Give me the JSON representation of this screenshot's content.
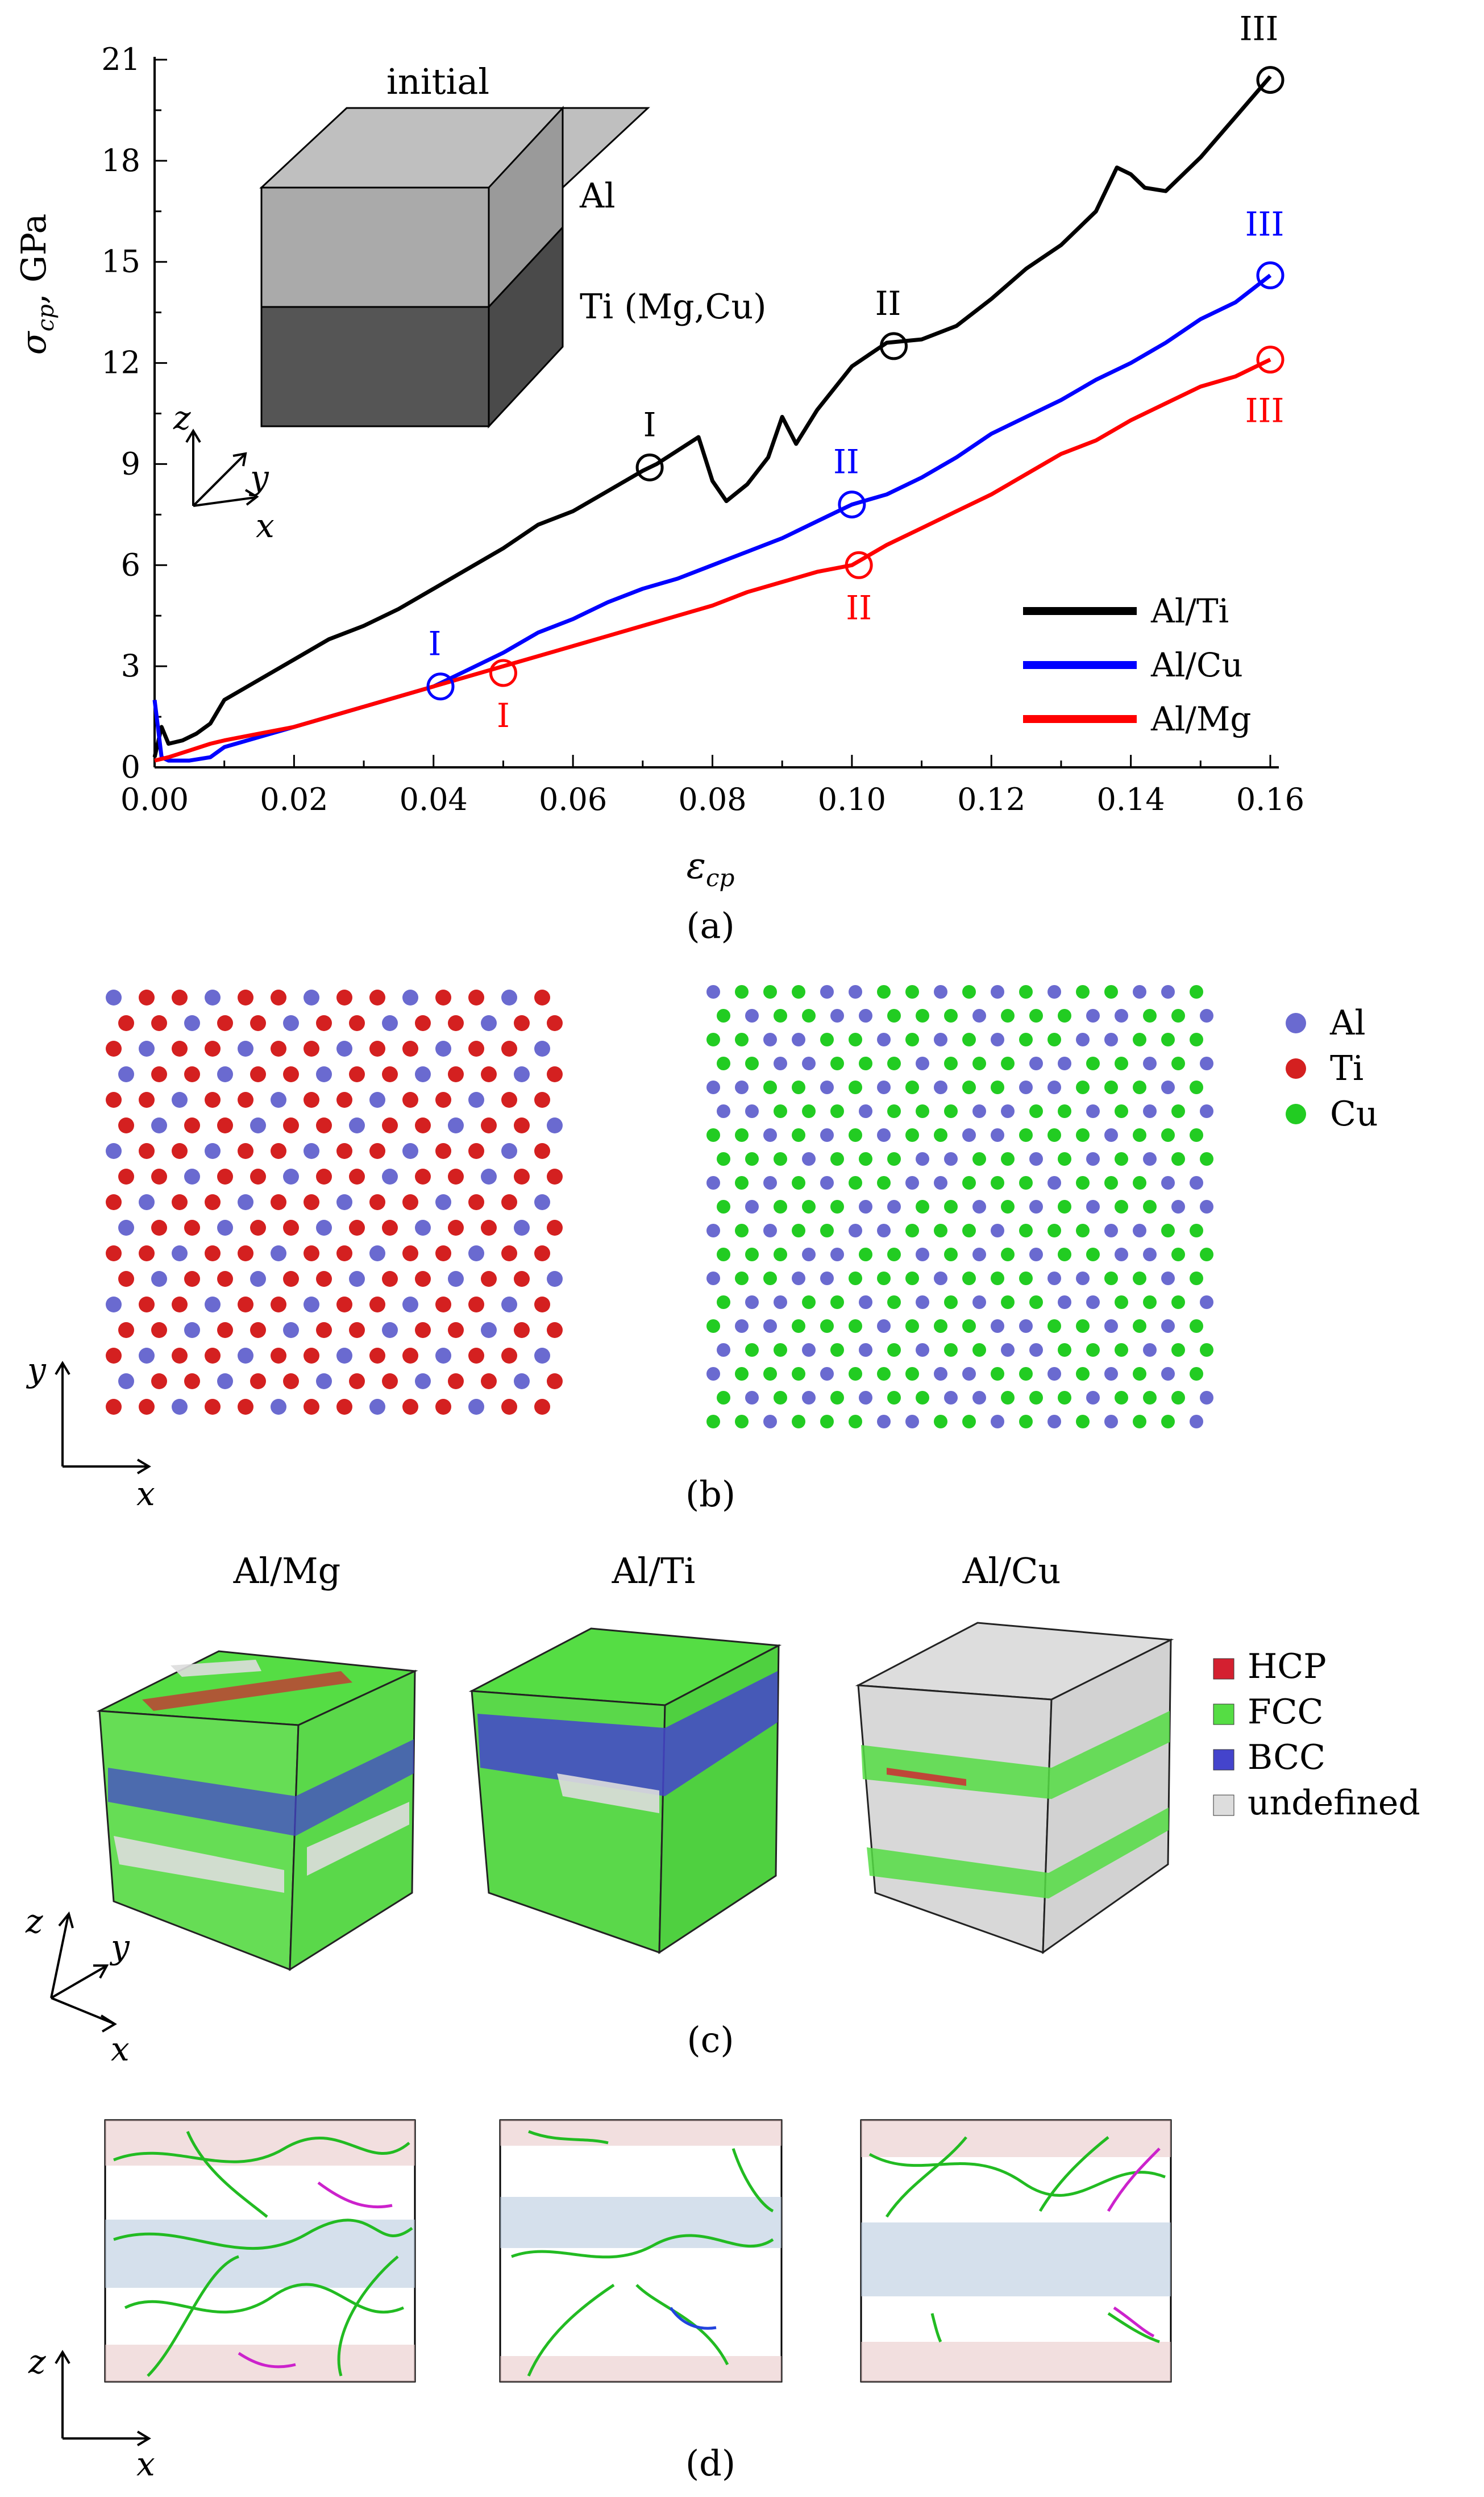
{
  "panel_a": {
    "label": "(a)",
    "inset": {
      "title": "initial",
      "top_label": "Al",
      "bottom_label": "Ti (Mg,Cu)",
      "axis_z": "z",
      "axis_y": "y",
      "axis_x": "x"
    }
  },
  "chart_data": {
    "type": "line",
    "ylabel": "σ_cp, GPa",
    "ylabel_main": "σ",
    "ylabel_sub": "cp",
    "ylabel_unit": ", GPa",
    "xlabel": "ε_cp",
    "xlabel_main": "ε",
    "xlabel_sub": "cp",
    "xlim": [
      0.0,
      0.16
    ],
    "ylim": [
      0,
      21
    ],
    "xticks": [
      0.0,
      0.02,
      0.04,
      0.06,
      0.08,
      0.1,
      0.12,
      0.14,
      0.16
    ],
    "xtick_labels": [
      "0.00",
      "0.02",
      "0.04",
      "0.06",
      "0.08",
      "0.10",
      "0.12",
      "0.14",
      "0.16"
    ],
    "yticks": [
      0,
      3,
      6,
      9,
      12,
      15,
      18,
      21
    ],
    "ytick_labels": [
      "0",
      "3",
      "6",
      "9",
      "12",
      "15",
      "18",
      "21"
    ],
    "legend_position": "bottom-right",
    "series": [
      {
        "name": "Al/Ti",
        "color": "#000000",
        "x": [
          0.0,
          0.001,
          0.002,
          0.004,
          0.006,
          0.008,
          0.01,
          0.015,
          0.02,
          0.025,
          0.03,
          0.035,
          0.04,
          0.045,
          0.05,
          0.055,
          0.06,
          0.065,
          0.07,
          0.072,
          0.075,
          0.078,
          0.08,
          0.082,
          0.085,
          0.088,
          0.09,
          0.092,
          0.095,
          0.1,
          0.105,
          0.11,
          0.115,
          0.12,
          0.125,
          0.13,
          0.135,
          0.138,
          0.14,
          0.142,
          0.145,
          0.15,
          0.155,
          0.16
        ],
        "y": [
          0.3,
          1.2,
          0.7,
          0.8,
          1.0,
          1.3,
          2.0,
          2.6,
          3.2,
          3.8,
          4.2,
          4.7,
          5.3,
          5.9,
          6.5,
          7.2,
          7.6,
          8.2,
          8.8,
          9.0,
          9.4,
          9.8,
          8.5,
          7.9,
          8.4,
          9.2,
          10.4,
          9.6,
          10.6,
          11.9,
          12.6,
          12.7,
          13.1,
          13.9,
          14.8,
          15.5,
          16.5,
          17.8,
          17.6,
          17.2,
          17.1,
          18.1,
          19.3,
          20.5
        ]
      },
      {
        "name": "Al/Cu",
        "color": "#0000ff",
        "x": [
          0.0,
          0.001,
          0.002,
          0.005,
          0.008,
          0.01,
          0.015,
          0.02,
          0.025,
          0.03,
          0.035,
          0.04,
          0.045,
          0.05,
          0.055,
          0.06,
          0.065,
          0.07,
          0.075,
          0.08,
          0.085,
          0.09,
          0.095,
          0.1,
          0.105,
          0.11,
          0.115,
          0.12,
          0.125,
          0.13,
          0.135,
          0.14,
          0.145,
          0.15,
          0.155,
          0.16
        ],
        "y": [
          2.0,
          0.3,
          0.2,
          0.2,
          0.3,
          0.6,
          0.9,
          1.2,
          1.5,
          1.8,
          2.1,
          2.4,
          2.9,
          3.4,
          4.0,
          4.4,
          4.9,
          5.3,
          5.6,
          6.0,
          6.4,
          6.8,
          7.3,
          7.8,
          8.1,
          8.6,
          9.2,
          9.9,
          10.4,
          10.9,
          11.5,
          12.0,
          12.6,
          13.3,
          13.8,
          14.6
        ]
      },
      {
        "name": "Al/Mg",
        "color": "#ff0000",
        "x": [
          0.0,
          0.002,
          0.005,
          0.008,
          0.01,
          0.015,
          0.02,
          0.025,
          0.03,
          0.035,
          0.04,
          0.045,
          0.05,
          0.055,
          0.06,
          0.065,
          0.07,
          0.075,
          0.08,
          0.085,
          0.09,
          0.095,
          0.1,
          0.105,
          0.11,
          0.115,
          0.12,
          0.125,
          0.13,
          0.135,
          0.14,
          0.145,
          0.15,
          0.155,
          0.16
        ],
        "y": [
          0.2,
          0.3,
          0.5,
          0.7,
          0.8,
          1.0,
          1.2,
          1.5,
          1.8,
          2.1,
          2.4,
          2.7,
          3.0,
          3.3,
          3.6,
          3.9,
          4.2,
          4.5,
          4.8,
          5.2,
          5.5,
          5.8,
          6.0,
          6.6,
          7.1,
          7.6,
          8.1,
          8.7,
          9.3,
          9.7,
          10.3,
          10.8,
          11.3,
          11.6,
          12.1
        ]
      }
    ],
    "markers": [
      {
        "series": "Al/Ti",
        "label": "I",
        "x": 0.071,
        "y": 8.9
      },
      {
        "series": "Al/Ti",
        "label": "II",
        "x": 0.106,
        "y": 12.5
      },
      {
        "series": "Al/Ti",
        "label": "III",
        "x": 0.16,
        "y": 20.4
      },
      {
        "series": "Al/Cu",
        "label": "I",
        "x": 0.041,
        "y": 2.4
      },
      {
        "series": "Al/Cu",
        "label": "II",
        "x": 0.1,
        "y": 7.8
      },
      {
        "series": "Al/Cu",
        "label": "III",
        "x": 0.16,
        "y": 14.6
      },
      {
        "series": "Al/Mg",
        "label": "I",
        "x": 0.05,
        "y": 2.8
      },
      {
        "series": "Al/Mg",
        "label": "II",
        "x": 0.101,
        "y": 6.0
      },
      {
        "series": "Al/Mg",
        "label": "III",
        "x": 0.16,
        "y": 12.1
      }
    ]
  },
  "panel_b": {
    "label": "(b)",
    "axis_y": "y",
    "axis_x": "x",
    "legend": [
      {
        "name": "Al",
        "color": "#6a6ad0"
      },
      {
        "name": "Ti",
        "color": "#d42020"
      },
      {
        "name": "Cu",
        "color": "#22cc22"
      }
    ]
  },
  "panel_c": {
    "label": "(c)",
    "titles": [
      "Al/Mg",
      "Al/Ti",
      "Al/Cu"
    ],
    "axis_z": "z",
    "axis_y": "y",
    "axis_x": "x",
    "legend": [
      {
        "name": "HCP",
        "color": "#d42030"
      },
      {
        "name": "FCC",
        "color": "#55dd44"
      },
      {
        "name": "BCC",
        "color": "#4444cc"
      },
      {
        "name": "undefined",
        "color": "#dddddd"
      }
    ]
  },
  "panel_d": {
    "label": "(d)",
    "axis_z": "z",
    "axis_x": "x"
  }
}
